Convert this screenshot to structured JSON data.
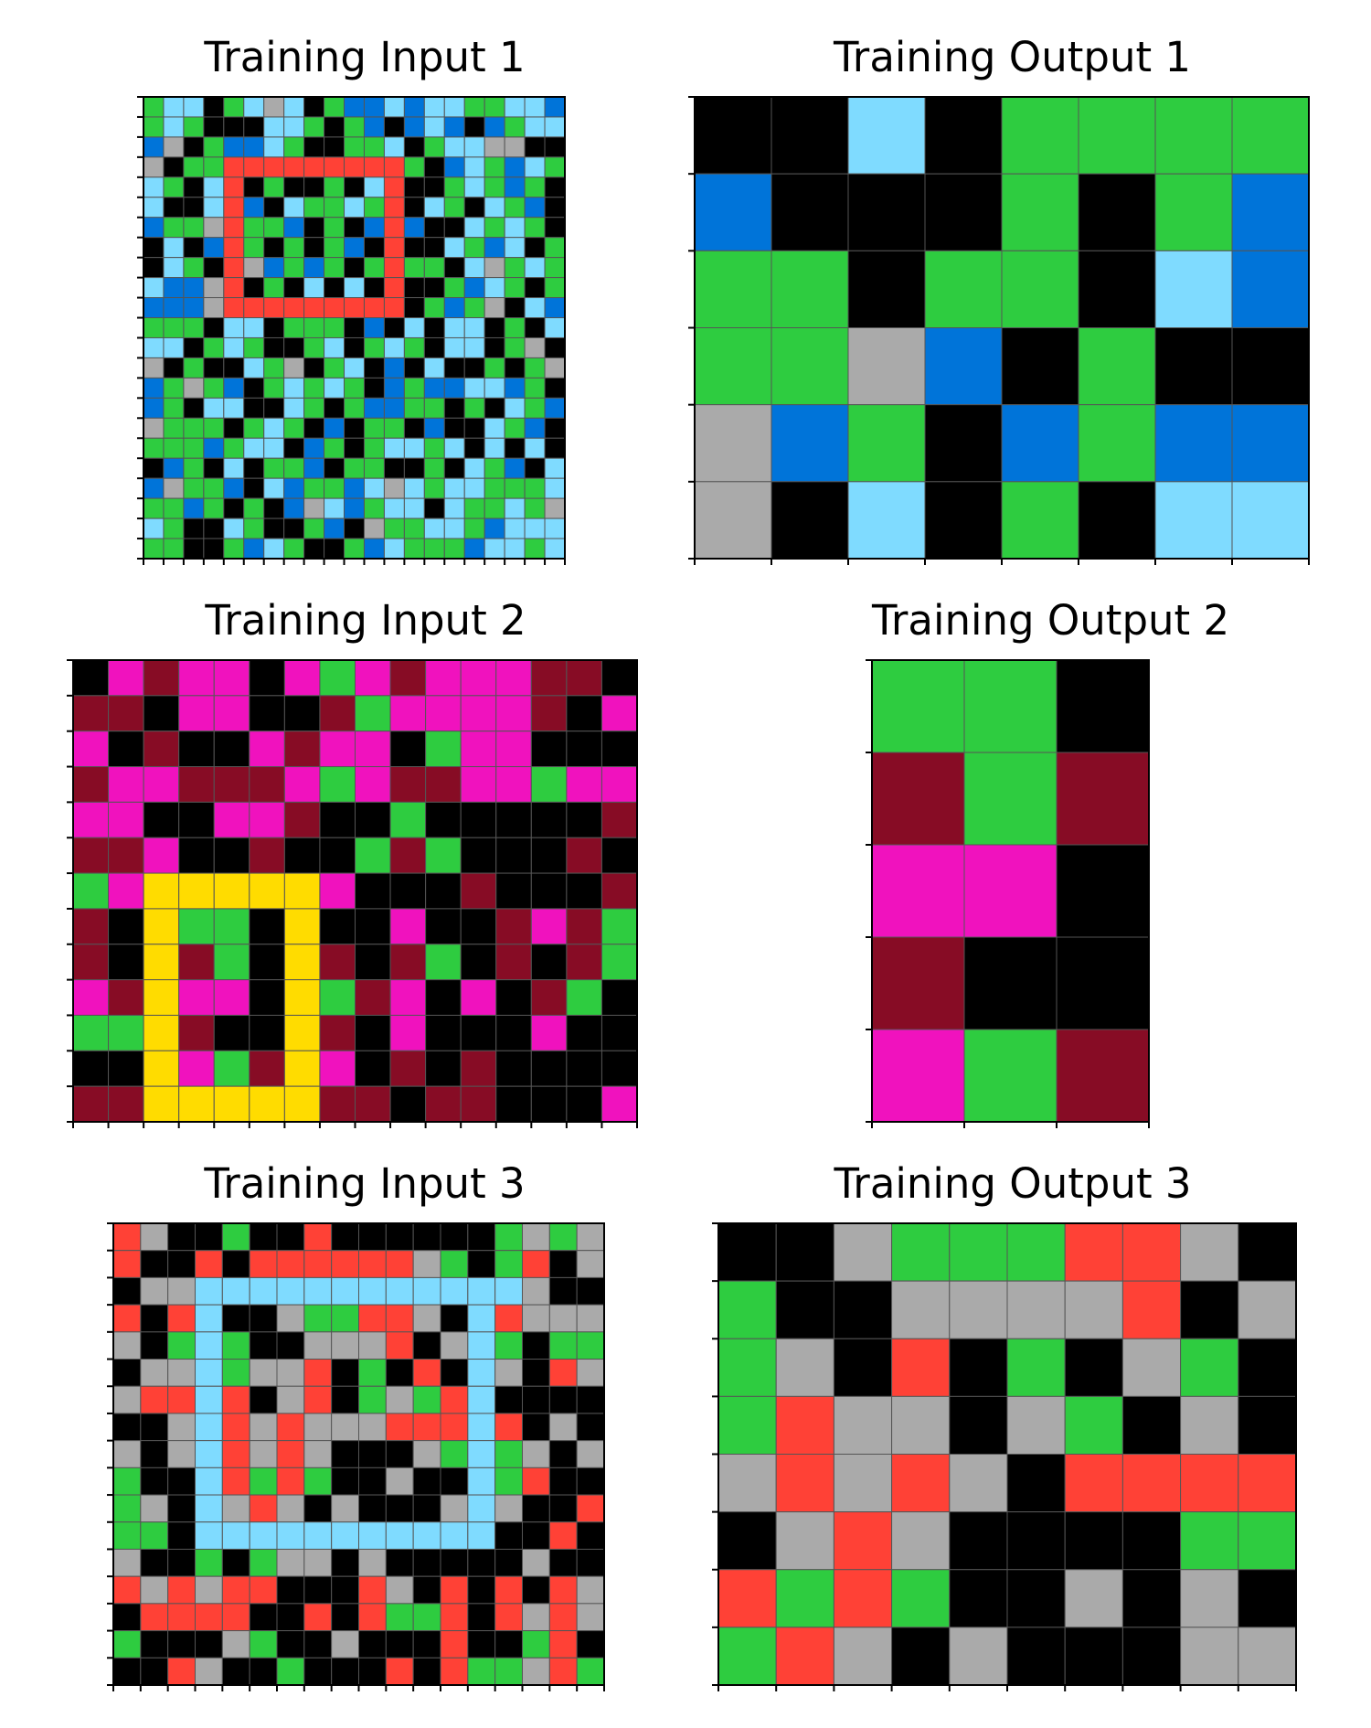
{
  "palette": {
    "0": "#000000",
    "1": "#0074D9",
    "2": "#FF4136",
    "3": "#2ECC40",
    "4": "#FFDC00",
    "5": "#AAAAAA",
    "6": "#F012BE",
    "8": "#7FDBFF",
    "9": "#870C25"
  },
  "panels": [
    {
      "title": "Training Input 1",
      "grid": [
        [
          3,
          8,
          8,
          0,
          3,
          8,
          5,
          8,
          0,
          3,
          1,
          1,
          8,
          1,
          8,
          8,
          3,
          3,
          8,
          8,
          1
        ],
        [
          3,
          8,
          3,
          0,
          0,
          0,
          8,
          8,
          3,
          0,
          3,
          1,
          0,
          1,
          8,
          1,
          0,
          1,
          3,
          8,
          8
        ],
        [
          1,
          5,
          0,
          3,
          1,
          1,
          8,
          3,
          0,
          0,
          3,
          3,
          8,
          0,
          3,
          8,
          8,
          5,
          5,
          0,
          0
        ],
        [
          5,
          0,
          3,
          3,
          2,
          2,
          2,
          2,
          2,
          2,
          2,
          2,
          2,
          3,
          0,
          1,
          8,
          3,
          1,
          8,
          3
        ],
        [
          8,
          3,
          0,
          8,
          2,
          0,
          3,
          0,
          0,
          3,
          0,
          8,
          2,
          0,
          0,
          3,
          8,
          3,
          1,
          3,
          0
        ],
        [
          8,
          0,
          0,
          8,
          2,
          1,
          0,
          8,
          3,
          3,
          8,
          3,
          2,
          0,
          8,
          3,
          0,
          8,
          3,
          1,
          0
        ],
        [
          1,
          3,
          3,
          5,
          2,
          3,
          3,
          1,
          0,
          3,
          0,
          1,
          2,
          1,
          0,
          0,
          8,
          3,
          8,
          3,
          0
        ],
        [
          0,
          8,
          0,
          1,
          2,
          3,
          0,
          3,
          0,
          3,
          1,
          0,
          2,
          0,
          0,
          8,
          3,
          1,
          8,
          0,
          3
        ],
        [
          0,
          8,
          3,
          0,
          2,
          5,
          1,
          3,
          1,
          3,
          0,
          3,
          2,
          3,
          3,
          0,
          8,
          5,
          3,
          8,
          3
        ],
        [
          8,
          1,
          1,
          5,
          2,
          0,
          3,
          0,
          8,
          0,
          8,
          0,
          2,
          0,
          0,
          3,
          1,
          8,
          3,
          0,
          3
        ],
        [
          1,
          1,
          1,
          5,
          2,
          2,
          2,
          2,
          2,
          2,
          2,
          2,
          2,
          0,
          3,
          1,
          3,
          5,
          0,
          8,
          1
        ],
        [
          3,
          3,
          3,
          0,
          8,
          8,
          0,
          3,
          3,
          3,
          0,
          1,
          0,
          8,
          0,
          8,
          8,
          0,
          3,
          0,
          8
        ],
        [
          8,
          8,
          0,
          3,
          8,
          3,
          0,
          0,
          3,
          8,
          0,
          3,
          8,
          3,
          0,
          8,
          8,
          0,
          3,
          5,
          0
        ],
        [
          5,
          0,
          3,
          0,
          0,
          8,
          3,
          5,
          0,
          3,
          8,
          0,
          1,
          0,
          8,
          0,
          0,
          3,
          0,
          3,
          5
        ],
        [
          1,
          3,
          5,
          3,
          1,
          0,
          3,
          8,
          3,
          8,
          3,
          0,
          1,
          3,
          1,
          1,
          8,
          8,
          1,
          3,
          0
        ],
        [
          1,
          3,
          0,
          8,
          8,
          0,
          0,
          8,
          3,
          0,
          3,
          1,
          1,
          3,
          3,
          0,
          3,
          0,
          8,
          3,
          1
        ],
        [
          5,
          3,
          3,
          3,
          0,
          3,
          8,
          3,
          0,
          1,
          0,
          3,
          3,
          0,
          1,
          0,
          0,
          8,
          3,
          1,
          0
        ],
        [
          3,
          3,
          3,
          1,
          3,
          8,
          8,
          0,
          1,
          3,
          0,
          3,
          8,
          8,
          3,
          8,
          0,
          8,
          0,
          8,
          0
        ],
        [
          0,
          1,
          3,
          0,
          8,
          0,
          3,
          3,
          1,
          0,
          3,
          3,
          0,
          0,
          3,
          0,
          8,
          3,
          1,
          0,
          8
        ],
        [
          1,
          5,
          3,
          3,
          1,
          0,
          8,
          1,
          3,
          3,
          1,
          8,
          5,
          8,
          3,
          8,
          8,
          3,
          3,
          3,
          8
        ],
        [
          3,
          3,
          1,
          3,
          0,
          3,
          0,
          1,
          5,
          8,
          1,
          3,
          8,
          8,
          0,
          8,
          3,
          3,
          8,
          3,
          5
        ],
        [
          8,
          3,
          0,
          0,
          8,
          3,
          0,
          0,
          3,
          1,
          0,
          5,
          3,
          3,
          8,
          8,
          3,
          1,
          8,
          8,
          8
        ],
        [
          3,
          3,
          0,
          0,
          3,
          1,
          8,
          3,
          0,
          0,
          3,
          1,
          8,
          3,
          3,
          3,
          1,
          8,
          8,
          3,
          8
        ]
      ]
    },
    {
      "title": "Training Output 1",
      "grid": [
        [
          0,
          0,
          8,
          0,
          3,
          3,
          3,
          3
        ],
        [
          1,
          0,
          0,
          0,
          3,
          0,
          3,
          1
        ],
        [
          3,
          3,
          0,
          3,
          3,
          0,
          8,
          1
        ],
        [
          3,
          3,
          5,
          1,
          0,
          3,
          0,
          0
        ],
        [
          5,
          1,
          3,
          0,
          1,
          3,
          1,
          1
        ],
        [
          5,
          0,
          8,
          0,
          3,
          0,
          8,
          8
        ]
      ]
    },
    {
      "title": "Training Input 2",
      "grid": [
        [
          0,
          6,
          9,
          6,
          6,
          0,
          6,
          3,
          6,
          9,
          6,
          6,
          6,
          9,
          9,
          0
        ],
        [
          9,
          9,
          0,
          6,
          6,
          0,
          0,
          9,
          3,
          6,
          6,
          6,
          6,
          9,
          0,
          6
        ],
        [
          6,
          0,
          9,
          0,
          0,
          6,
          9,
          6,
          6,
          0,
          3,
          6,
          6,
          0,
          0,
          0
        ],
        [
          9,
          6,
          6,
          9,
          9,
          9,
          6,
          3,
          6,
          9,
          9,
          6,
          6,
          3,
          6,
          6
        ],
        [
          6,
          6,
          0,
          0,
          6,
          6,
          9,
          0,
          0,
          3,
          0,
          0,
          0,
          0,
          0,
          9
        ],
        [
          9,
          9,
          6,
          0,
          0,
          9,
          0,
          0,
          3,
          9,
          3,
          0,
          0,
          0,
          9,
          0
        ],
        [
          3,
          6,
          4,
          4,
          4,
          4,
          4,
          6,
          0,
          0,
          0,
          9,
          0,
          0,
          0,
          9
        ],
        [
          9,
          0,
          4,
          3,
          3,
          0,
          4,
          0,
          0,
          6,
          0,
          0,
          9,
          6,
          9,
          3
        ],
        [
          9,
          0,
          4,
          9,
          3,
          0,
          4,
          9,
          0,
          9,
          3,
          0,
          9,
          0,
          9,
          3
        ],
        [
          6,
          9,
          4,
          6,
          6,
          0,
          4,
          3,
          9,
          6,
          0,
          6,
          0,
          9,
          3,
          0
        ],
        [
          3,
          3,
          4,
          9,
          0,
          0,
          4,
          9,
          0,
          6,
          0,
          0,
          0,
          6,
          0,
          0
        ],
        [
          0,
          0,
          4,
          6,
          3,
          9,
          4,
          6,
          0,
          9,
          0,
          9,
          0,
          0,
          0,
          0
        ],
        [
          9,
          9,
          4,
          4,
          4,
          4,
          4,
          9,
          9,
          0,
          9,
          9,
          0,
          0,
          0,
          6
        ]
      ]
    },
    {
      "title": "Training Output 2",
      "grid": [
        [
          3,
          3,
          0
        ],
        [
          9,
          3,
          9
        ],
        [
          6,
          6,
          0
        ],
        [
          9,
          0,
          0
        ],
        [
          6,
          3,
          9
        ]
      ]
    },
    {
      "title": "Training Input 3",
      "grid": [
        [
          2,
          5,
          0,
          0,
          3,
          0,
          0,
          2,
          0,
          0,
          0,
          0,
          0,
          0,
          3,
          5,
          3,
          5
        ],
        [
          2,
          0,
          0,
          2,
          0,
          2,
          2,
          2,
          2,
          2,
          2,
          5,
          3,
          0,
          3,
          2,
          0,
          5
        ],
        [
          0,
          5,
          5,
          8,
          8,
          8,
          8,
          8,
          8,
          8,
          8,
          8,
          8,
          8,
          8,
          5,
          0,
          0
        ],
        [
          2,
          0,
          2,
          8,
          0,
          0,
          5,
          3,
          3,
          2,
          2,
          5,
          0,
          8,
          2,
          5,
          5,
          5
        ],
        [
          5,
          0,
          3,
          8,
          3,
          0,
          0,
          5,
          5,
          5,
          2,
          0,
          5,
          8,
          3,
          0,
          3,
          3
        ],
        [
          0,
          5,
          5,
          8,
          3,
          5,
          5,
          2,
          0,
          3,
          0,
          2,
          0,
          8,
          5,
          0,
          2,
          5
        ],
        [
          5,
          2,
          2,
          8,
          2,
          0,
          5,
          2,
          0,
          3,
          5,
          3,
          2,
          8,
          0,
          0,
          0,
          0
        ],
        [
          0,
          0,
          5,
          8,
          2,
          5,
          2,
          5,
          5,
          5,
          2,
          2,
          2,
          8,
          2,
          0,
          5,
          0
        ],
        [
          5,
          0,
          5,
          8,
          2,
          5,
          2,
          5,
          0,
          0,
          0,
          5,
          3,
          8,
          3,
          5,
          0,
          5
        ],
        [
          3,
          0,
          0,
          8,
          2,
          3,
          2,
          3,
          0,
          0,
          5,
          0,
          0,
          8,
          3,
          2,
          0,
          0
        ],
        [
          3,
          5,
          0,
          8,
          5,
          2,
          5,
          0,
          5,
          0,
          0,
          0,
          5,
          8,
          5,
          0,
          0,
          2
        ],
        [
          3,
          3,
          0,
          8,
          8,
          8,
          8,
          8,
          8,
          8,
          8,
          8,
          8,
          8,
          0,
          0,
          2,
          0
        ],
        [
          5,
          0,
          0,
          3,
          0,
          3,
          5,
          5,
          0,
          5,
          0,
          0,
          0,
          0,
          0,
          5,
          0,
          0
        ],
        [
          2,
          5,
          2,
          5,
          2,
          2,
          0,
          0,
          0,
          2,
          5,
          0,
          2,
          0,
          2,
          0,
          2,
          5
        ],
        [
          0,
          2,
          2,
          2,
          2,
          0,
          0,
          2,
          0,
          2,
          3,
          3,
          2,
          0,
          2,
          5,
          2,
          5
        ],
        [
          3,
          0,
          0,
          0,
          5,
          3,
          0,
          0,
          5,
          0,
          0,
          0,
          2,
          0,
          0,
          3,
          2,
          0
        ],
        [
          0,
          0,
          2,
          5,
          0,
          0,
          3,
          0,
          0,
          0,
          2,
          0,
          2,
          3,
          3,
          5,
          2,
          3
        ]
      ]
    },
    {
      "title": "Training Output 3",
      "grid": [
        [
          0,
          0,
          5,
          3,
          3,
          3,
          2,
          2,
          5,
          0
        ],
        [
          3,
          0,
          0,
          5,
          5,
          5,
          5,
          2,
          0,
          5
        ],
        [
          3,
          5,
          0,
          2,
          0,
          3,
          0,
          5,
          3,
          0
        ],
        [
          3,
          2,
          5,
          5,
          0,
          5,
          3,
          0,
          5,
          0
        ],
        [
          5,
          2,
          5,
          2,
          5,
          0,
          2,
          2,
          2,
          2
        ],
        [
          0,
          5,
          2,
          5,
          0,
          0,
          0,
          0,
          3,
          3
        ],
        [
          2,
          3,
          2,
          3,
          0,
          0,
          5,
          0,
          5,
          0
        ],
        [
          3,
          2,
          5,
          0,
          5,
          0,
          0,
          0,
          5,
          5
        ]
      ]
    }
  ]
}
